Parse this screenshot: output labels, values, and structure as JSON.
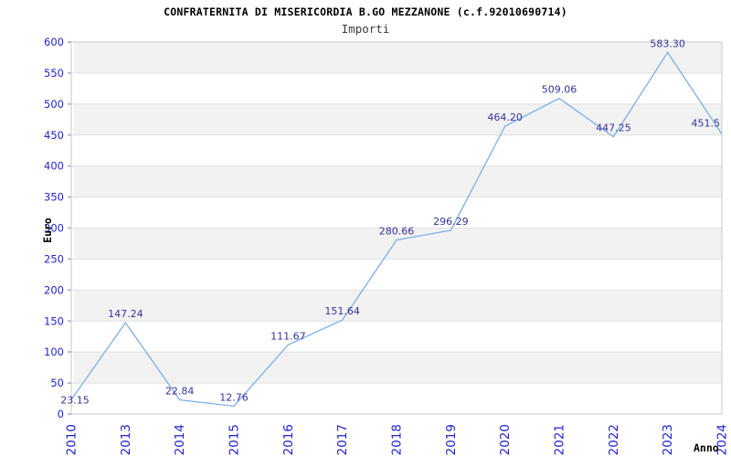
{
  "title": "CONFRATERNITA DI MISERICORDIA B.GO MEZZANONE (c.f.92010690714)",
  "subtitle": "Importi",
  "chart_data": {
    "type": "line",
    "title": "CONFRATERNITA DI MISERICORDIA B.GO MEZZANONE (c.f.92010690714)",
    "subtitle": "Importi",
    "xlabel": "Anno",
    "ylabel": "Euro",
    "categories": [
      "2010",
      "2013",
      "2014",
      "2015",
      "2016",
      "2017",
      "2018",
      "2019",
      "2020",
      "2021",
      "2022",
      "2023",
      "2024"
    ],
    "values": [
      23.15,
      147.24,
      22.84,
      12.76,
      111.67,
      151.64,
      280.66,
      296.29,
      464.2,
      509.06,
      447.25,
      583.3,
      451.5
    ],
    "point_labels": [
      "23.15",
      "147.24",
      "22.84",
      "12.76",
      "111.67",
      "151.64",
      "280.66",
      "296.29",
      "464.20",
      "509.06",
      "447.25",
      "583.30",
      "451.5"
    ],
    "ylim": [
      0,
      600
    ],
    "ytick_step": 50,
    "ytick_labels": [
      "0",
      "50",
      "100",
      "150",
      "200",
      "250",
      "300",
      "350",
      "400",
      "450",
      "500",
      "550",
      "600"
    ],
    "grid": "horizontal-bands",
    "legend": "none",
    "colors": {
      "line": "#7cb0e8",
      "point_label": "#333399",
      "tick_label": "#2323cc",
      "band_gray": "#f2f2f2",
      "band_white": "#ffffff",
      "gridline": "#e0e0e0",
      "plot_border": "#c9c9c9",
      "axis_tick": "#b8b8e8",
      "title_color": "#000000",
      "subtitle_color": "#3a3a3a"
    }
  }
}
